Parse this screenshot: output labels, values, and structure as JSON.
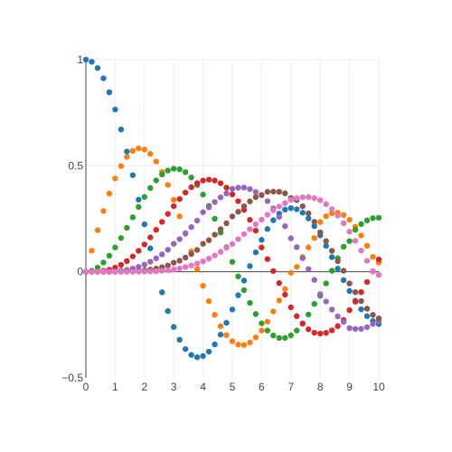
{
  "chart_data": {
    "type": "scatter",
    "title": "",
    "xlabel": "",
    "ylabel": "",
    "xlim": [
      0,
      10
    ],
    "ylim": [
      -0.5,
      1
    ],
    "grid": true,
    "legend": "none",
    "x_ticks": [
      {
        "value": 0,
        "label": "0"
      },
      {
        "value": 1,
        "label": "1"
      },
      {
        "value": 2,
        "label": "2"
      },
      {
        "value": 3,
        "label": "3"
      },
      {
        "value": 4,
        "label": "4"
      },
      {
        "value": 5,
        "label": "5"
      },
      {
        "value": 6,
        "label": "6"
      },
      {
        "value": 7,
        "label": "7"
      },
      {
        "value": 8,
        "label": "8"
      },
      {
        "value": 9,
        "label": "9"
      },
      {
        "value": 10,
        "label": "10"
      }
    ],
    "y_ticks": [
      {
        "value": -0.5,
        "label": "−0.5"
      },
      {
        "value": 0,
        "label": "0"
      },
      {
        "value": 0.5,
        "label": "0.5"
      },
      {
        "value": 1,
        "label": "1"
      }
    ],
    "x": [
      0,
      0.2,
      0.4,
      0.6,
      0.8,
      1.0,
      1.2,
      1.4,
      1.6,
      1.8,
      2.0,
      2.2,
      2.4,
      2.6,
      2.8,
      3.0,
      3.2,
      3.4,
      3.6,
      3.8,
      4.0,
      4.2,
      4.4,
      4.6,
      4.8,
      5.0,
      5.2,
      5.4,
      5.6,
      5.8,
      6.0,
      6.2,
      6.4,
      6.6,
      6.8,
      7.0,
      7.2,
      7.4,
      7.6,
      7.8,
      8.0,
      8.2,
      8.4,
      8.6,
      8.8,
      9.0,
      9.2,
      9.4,
      9.6,
      9.8,
      10.0
    ],
    "series": [
      {
        "color": "#1f77b4",
        "values": [
          1.0,
          0.99,
          0.9604,
          0.912,
          0.8463,
          0.7652,
          0.6711,
          0.5669,
          0.4554,
          0.34,
          0.2239,
          0.1104,
          0.0025,
          -0.0968,
          -0.185,
          -0.2601,
          -0.3202,
          -0.3643,
          -0.3918,
          -0.4026,
          -0.3971,
          -0.3766,
          -0.3423,
          -0.2961,
          -0.2404,
          -0.1776,
          -0.1103,
          -0.0412,
          0.027,
          0.0917,
          0.1506,
          0.2017,
          0.2433,
          0.274,
          0.2931,
          0.3001,
          0.2951,
          0.2786,
          0.2516,
          0.2154,
          0.1717,
          0.1222,
          0.0692,
          0.0146,
          -0.0392,
          -0.0903,
          -0.1367,
          -0.1768,
          -0.209,
          -0.2323,
          -0.2459
        ]
      },
      {
        "color": "#ff7f0e",
        "values": [
          0.0,
          0.0995,
          0.196,
          0.2867,
          0.3688,
          0.4401,
          0.4983,
          0.5419,
          0.5699,
          0.5815,
          0.5767,
          0.556,
          0.5202,
          0.4708,
          0.4097,
          0.3391,
          0.2613,
          0.1792,
          0.0955,
          0.0128,
          -0.066,
          -0.1386,
          -0.2028,
          -0.2566,
          -0.2985,
          -0.3276,
          -0.343,
          -0.3448,
          -0.3332,
          -0.3091,
          -0.2767,
          -0.2349,
          -0.1871,
          -0.135,
          -0.081,
          -0.0047,
          0.023,
          0.0695,
          0.1149,
          0.1594,
          0.2346,
          0.2618,
          0.2764,
          0.2782,
          0.2677,
          0.2453,
          0.2126,
          0.1712,
          0.123,
          0.0703,
          0.0435
        ]
      },
      {
        "color": "#2ca02c",
        "values": [
          0.0,
          0.005,
          0.0197,
          0.0437,
          0.0758,
          0.1149,
          0.1593,
          0.2074,
          0.257,
          0.3061,
          0.3528,
          0.3951,
          0.431,
          0.459,
          0.4777,
          0.4861,
          0.4835,
          0.4697,
          0.4448,
          0.4093,
          0.3641,
          0.3105,
          0.2501,
          0.1846,
          0.1161,
          0.0466,
          -0.0217,
          -0.0867,
          -0.1464,
          -0.1989,
          -0.2429,
          -0.2769,
          -0.3001,
          -0.3118,
          -0.3116,
          -0.2997,
          -0.2766,
          -0.2435,
          -0.2013,
          -0.1515,
          -0.113,
          -0.055,
          0.005,
          0.064,
          0.118,
          0.1448,
          0.198,
          0.225,
          0.242,
          0.253,
          0.2546
        ]
      },
      {
        "color": "#d62728",
        "values": [
          0.0,
          0.0002,
          0.0013,
          0.0044,
          0.0102,
          0.0196,
          0.0329,
          0.0505,
          0.0725,
          0.0988,
          0.1289,
          0.1623,
          0.1981,
          0.2353,
          0.2727,
          0.3091,
          0.3431,
          0.3734,
          0.3988,
          0.4181,
          0.4302,
          0.4344,
          0.4302,
          0.4176,
          0.3965,
          0.3648,
          0.333,
          0.292,
          0.245,
          0.194,
          0.1148,
          0.06,
          0.0036,
          -0.053,
          -0.108,
          -0.1676,
          -0.209,
          -0.244,
          -0.271,
          -0.287,
          -0.2911,
          -0.288,
          -0.276,
          -0.256,
          -0.227,
          -0.1809,
          -0.1409,
          -0.096,
          -0.048,
          0.002,
          0.0584
        ]
      },
      {
        "color": "#9467bd",
        "values": [
          0.0,
          0.0,
          0.0001,
          0.0003,
          0.001,
          0.0025,
          0.005,
          0.0091,
          0.015,
          0.0232,
          0.034,
          0.0474,
          0.0636,
          0.0825,
          0.1039,
          0.132,
          0.154,
          0.1818,
          0.211,
          0.2413,
          0.2811,
          0.3039,
          0.3288,
          0.3511,
          0.3694,
          0.3912,
          0.3965,
          0.3972,
          0.39,
          0.376,
          0.3621,
          0.333,
          0.299,
          0.259,
          0.215,
          0.1578,
          0.116,
          0.064,
          0.013,
          -0.038,
          -0.1054,
          -0.14,
          -0.178,
          -0.21,
          -0.236,
          -0.2655,
          -0.269,
          -0.269,
          -0.261,
          -0.246,
          -0.2341
        ]
      },
      {
        "color": "#8c564b",
        "values": [
          0.0,
          0.0,
          0.0,
          0.0,
          0.0001,
          0.0002,
          0.0006,
          0.0012,
          0.0023,
          0.004,
          0.007,
          0.0105,
          0.0152,
          0.0216,
          0.0298,
          0.043,
          0.0524,
          0.067,
          0.084,
          0.103,
          0.1321,
          0.149,
          0.175,
          0.201,
          0.229,
          0.2611,
          0.283,
          0.309,
          0.332,
          0.352,
          0.3621,
          0.377,
          0.378,
          0.377,
          0.37,
          0.3479,
          0.338,
          0.309,
          0.275,
          0.236,
          0.1858,
          0.145,
          0.099,
          0.05,
          0.005,
          -0.055,
          -0.096,
          -0.138,
          -0.174,
          -0.203,
          -0.2196
        ]
      },
      {
        "color": "#e377c2",
        "values": [
          0.0,
          0.0,
          0.0,
          0.0,
          0.0,
          0.0,
          0.0001,
          0.0001,
          0.0003,
          0.0006,
          0.0012,
          0.002,
          0.0032,
          0.005,
          0.0075,
          0.0114,
          0.016,
          0.022,
          0.0295,
          0.0387,
          0.0491,
          0.062,
          0.077,
          0.094,
          0.113,
          0.131,
          0.154,
          0.178,
          0.201,
          0.224,
          0.2458,
          0.269,
          0.29,
          0.308,
          0.324,
          0.3392,
          0.347,
          0.351,
          0.352,
          0.347,
          0.3376,
          0.319,
          0.295,
          0.265,
          0.229,
          0.1891,
          0.146,
          0.1,
          0.052,
          0.003,
          -0.0145
        ]
      }
    ]
  }
}
